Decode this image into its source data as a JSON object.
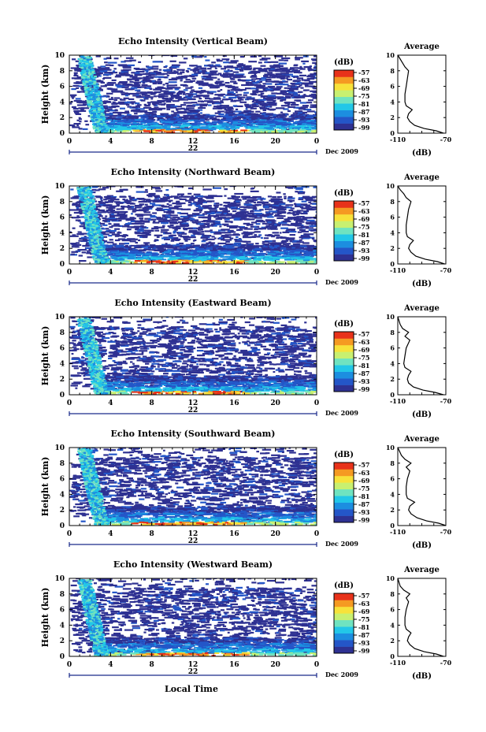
{
  "panels_common": {
    "ylabel": "Height (km)",
    "y_ticks": [
      "0",
      "2",
      "4",
      "6",
      "8",
      "10"
    ],
    "x_ticks": [
      "0",
      "4",
      "8",
      "12",
      "16",
      "20",
      "0"
    ],
    "day_label": "22",
    "month_label": "Dec 2009",
    "cbar_title": "(dB)",
    "cbar_ticks": [
      "-57",
      "-63",
      "-69",
      "-75",
      "-81",
      "-87",
      "-93",
      "-99"
    ],
    "avg_title": "Average",
    "avg_xlabel": "(dB)",
    "avg_x_ticks": [
      "-110",
      "-70"
    ],
    "avg_y_ticks": [
      "0",
      "2",
      "4",
      "6",
      "8",
      "10"
    ]
  },
  "xlabel": "Local Time",
  "chart_data": [
    {
      "type": "heatmap",
      "title": "Echo Intensity (Vertical Beam)",
      "xlabel": "Local Time",
      "ylabel": "Height (km)",
      "xlim": [
        0,
        24
      ],
      "ylim": [
        0,
        10
      ],
      "colorbar_range_dB": [
        -99,
        -57
      ],
      "colormap": [
        "#2e3192",
        "#2456c8",
        "#1c8ee0",
        "#22c7e8",
        "#6fe3c0",
        "#c8f070",
        "#f7e23a",
        "#f59a22",
        "#e8321a"
      ],
      "average_profile": {
        "xlim": [
          -110,
          -70
        ],
        "height_km": [
          0,
          0.3,
          0.6,
          1,
          1.5,
          2,
          2.5,
          3,
          3.5,
          4,
          5,
          6,
          7,
          8,
          8.5,
          9,
          9.5,
          10
        ],
        "value_dB": [
          -72,
          -78,
          -88,
          -96,
          -100,
          -102,
          -101,
          -98,
          -103,
          -104,
          -104,
          -103,
          -102,
          -101,
          -104,
          -106,
          -108,
          -110
        ]
      }
    },
    {
      "type": "heatmap",
      "title": "Echo Intensity (Northward Beam)",
      "xlabel": "Local Time",
      "ylabel": "Height (km)",
      "xlim": [
        0,
        24
      ],
      "ylim": [
        0,
        10
      ],
      "colorbar_range_dB": [
        -99,
        -57
      ],
      "colormap": [
        "#2e3192",
        "#2456c8",
        "#1c8ee0",
        "#22c7e8",
        "#6fe3c0",
        "#c8f070",
        "#f7e23a",
        "#f59a22",
        "#e8321a"
      ],
      "average_profile": {
        "xlim": [
          -110,
          -70
        ],
        "height_km": [
          0,
          0.3,
          0.6,
          1,
          1.5,
          2,
          2.5,
          3,
          3.5,
          4,
          5,
          6,
          7,
          8,
          8.5,
          9,
          9.5,
          10
        ],
        "value_dB": [
          -71,
          -77,
          -87,
          -95,
          -99,
          -101,
          -100,
          -97,
          -102,
          -103,
          -103,
          -102,
          -101,
          -99,
          -103,
          -105,
          -108,
          -110
        ]
      }
    },
    {
      "type": "heatmap",
      "title": "Echo Intensity (Eastward Beam)",
      "xlabel": "Local Time",
      "ylabel": "Height (km)",
      "xlim": [
        0,
        24
      ],
      "ylim": [
        0,
        10
      ],
      "colorbar_range_dB": [
        -99,
        -57
      ],
      "colormap": [
        "#2e3192",
        "#2456c8",
        "#1c8ee0",
        "#22c7e8",
        "#6fe3c0",
        "#c8f070",
        "#f7e23a",
        "#f59a22",
        "#e8321a"
      ],
      "average_profile": {
        "xlim": [
          -110,
          -70
        ],
        "height_km": [
          0,
          0.3,
          0.6,
          1,
          1.5,
          2,
          2.5,
          3,
          3.5,
          4,
          5,
          6,
          7,
          7.5,
          8,
          8.5,
          9,
          10
        ],
        "value_dB": [
          -72,
          -79,
          -89,
          -97,
          -101,
          -102,
          -101,
          -99,
          -104,
          -105,
          -104,
          -103,
          -100,
          -104,
          -101,
          -106,
          -108,
          -110
        ]
      }
    },
    {
      "type": "heatmap",
      "title": "Echo Intensity (Southward Beam)",
      "xlabel": "Local Time",
      "ylabel": "Height (km)",
      "xlim": [
        0,
        24
      ],
      "ylim": [
        0,
        10
      ],
      "colorbar_range_dB": [
        -99,
        -57
      ],
      "colormap": [
        "#2e3192",
        "#2456c8",
        "#1c8ee0",
        "#22c7e8",
        "#6fe3c0",
        "#c8f070",
        "#f7e23a",
        "#f59a22",
        "#e8321a"
      ],
      "average_profile": {
        "xlim": [
          -110,
          -70
        ],
        "height_km": [
          0,
          0.3,
          0.6,
          1,
          1.5,
          2,
          2.5,
          3,
          3.5,
          4,
          5,
          6,
          7,
          7.5,
          8,
          8.5,
          9,
          10
        ],
        "value_dB": [
          -70,
          -76,
          -86,
          -94,
          -99,
          -101,
          -100,
          -96,
          -102,
          -103,
          -103,
          -102,
          -100,
          -103,
          -99,
          -104,
          -107,
          -110
        ]
      }
    },
    {
      "type": "heatmap",
      "title": "Echo Intensity (Westward Beam)",
      "xlabel": "Local Time",
      "ylabel": "Height (km)",
      "xlim": [
        0,
        24
      ],
      "ylim": [
        0,
        10
      ],
      "colorbar_range_dB": [
        -99,
        -57
      ],
      "colormap": [
        "#2e3192",
        "#2456c8",
        "#1c8ee0",
        "#22c7e8",
        "#6fe3c0",
        "#c8f070",
        "#f7e23a",
        "#f59a22",
        "#e8321a"
      ],
      "average_profile": {
        "xlim": [
          -110,
          -70
        ],
        "height_km": [
          0,
          0.3,
          0.6,
          1,
          1.5,
          2,
          2.5,
          3,
          3.5,
          4,
          5,
          6,
          7,
          7.5,
          8,
          8.5,
          9,
          10
        ],
        "value_dB": [
          -72,
          -78,
          -88,
          -96,
          -100,
          -102,
          -101,
          -99,
          -103,
          -104,
          -104,
          -103,
          -101,
          -103,
          -100,
          -105,
          -108,
          -110
        ]
      }
    }
  ]
}
